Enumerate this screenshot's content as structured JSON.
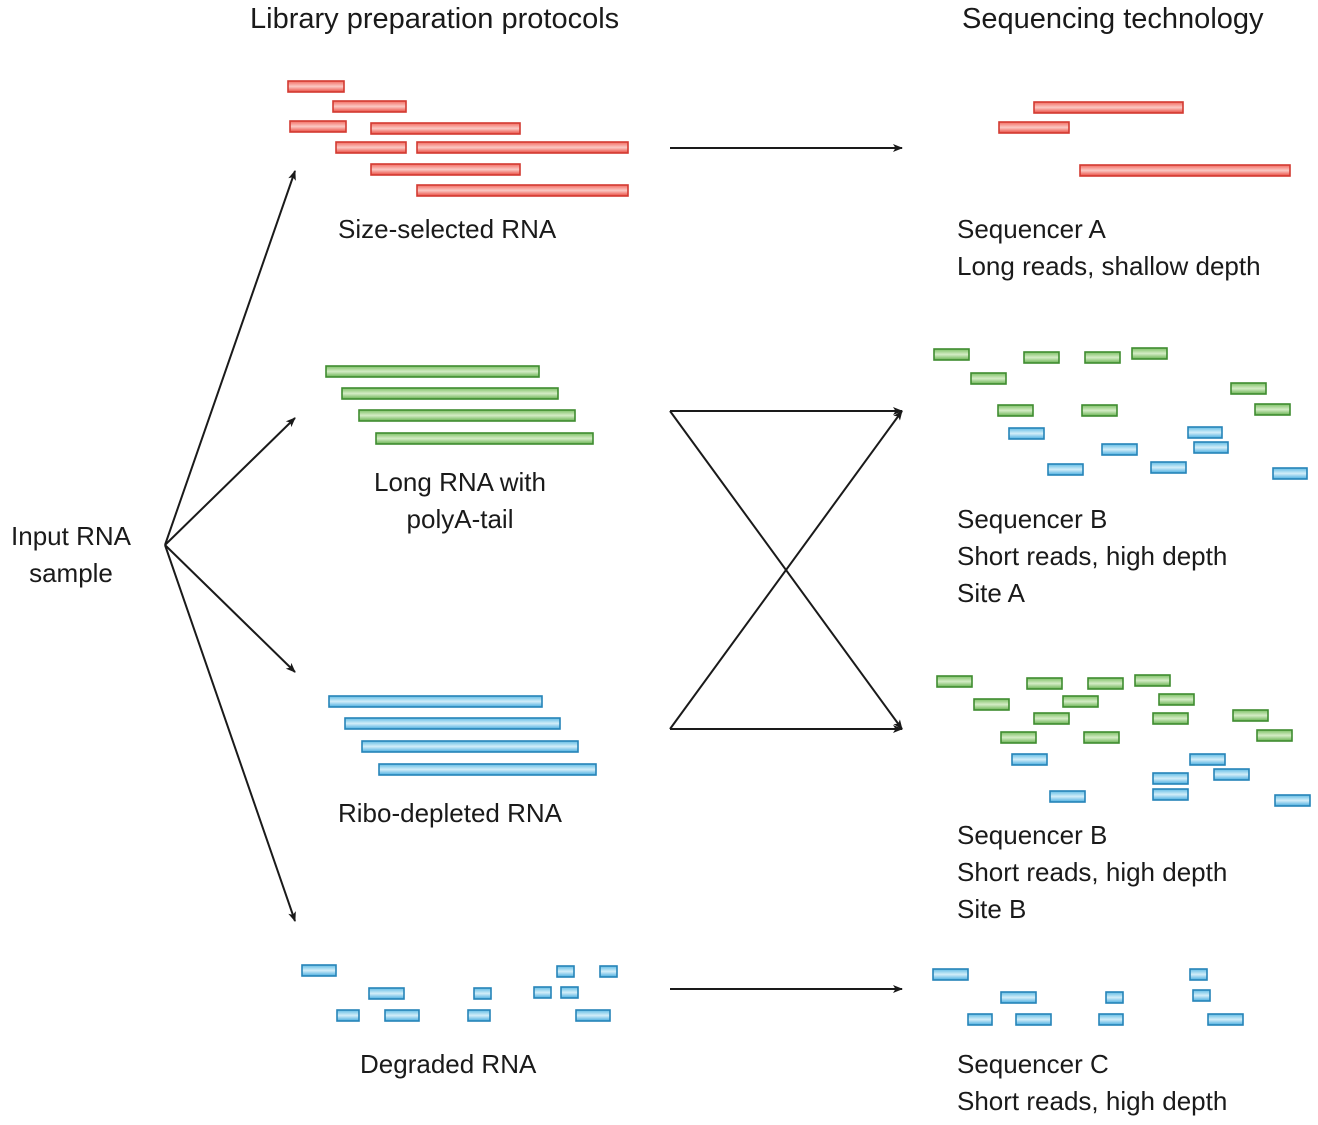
{
  "headers": {
    "library": "Library preparation protocols",
    "sequencing": "Sequencing technology"
  },
  "input": {
    "line1": "Input RNA",
    "line2": "sample"
  },
  "protocols": {
    "size_selected": "Size-selected RNA",
    "long_polya_line1": "Long RNA with",
    "long_polya_line2": "polyA-tail",
    "ribo_depleted": "Ribo-depleted RNA",
    "degraded": "Degraded RNA"
  },
  "sequencers": {
    "a": {
      "name": "Sequencer A",
      "desc": "Long reads, shallow depth"
    },
    "b_site_a": {
      "name": "Sequencer B",
      "desc": "Short reads, high depth",
      "site": "Site A"
    },
    "b_site_b": {
      "name": "Sequencer B",
      "desc": "Short reads, high depth",
      "site": "Site B"
    },
    "c": {
      "name": "Sequencer C",
      "desc": "Short reads, high depth"
    }
  },
  "colors": {
    "red": "#e8453c",
    "red_light": "#fbc9c4",
    "green": "#5fae4a",
    "green_light": "#cfe8bf",
    "blue": "#3fa6d6",
    "blue_light": "#cdeaf7",
    "arrow": "#1a1a1a"
  }
}
